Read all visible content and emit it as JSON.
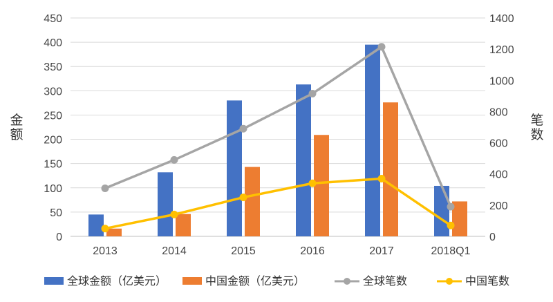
{
  "chart_data": {
    "type": "bar",
    "categories": [
      "2013",
      "2014",
      "2015",
      "2016",
      "2017",
      "2018Q1"
    ],
    "y_left": {
      "label": [
        "金",
        "额"
      ],
      "ticks": [
        0,
        50,
        100,
        150,
        200,
        250,
        300,
        350,
        400,
        450
      ],
      "lim": [
        0,
        450
      ]
    },
    "y_right": {
      "label": [
        "笔",
        "数"
      ],
      "ticks": [
        0,
        200,
        400,
        600,
        800,
        1000,
        1200,
        1400
      ],
      "lim": [
        0,
        1400
      ]
    },
    "grid": true,
    "legend_position": "bottom",
    "series": [
      {
        "name": "全球金额（亿美元）",
        "kind": "bar",
        "axis": "left",
        "color": "#4472c4",
        "values": [
          45,
          132,
          280,
          313,
          395,
          104
        ]
      },
      {
        "name": "中国金额（亿美元）",
        "kind": "bar",
        "axis": "left",
        "color": "#ed7d31",
        "values": [
          16,
          46,
          143,
          209,
          276,
          72
        ]
      },
      {
        "name": "全球笔数",
        "kind": "line",
        "axis": "right",
        "color": "#a5a5a5",
        "values": [
          308,
          490,
          690,
          915,
          1215,
          190
        ]
      },
      {
        "name": "中国笔数",
        "kind": "line",
        "axis": "right",
        "color": "#ffc000",
        "values": [
          50,
          140,
          250,
          340,
          370,
          70
        ]
      }
    ]
  }
}
